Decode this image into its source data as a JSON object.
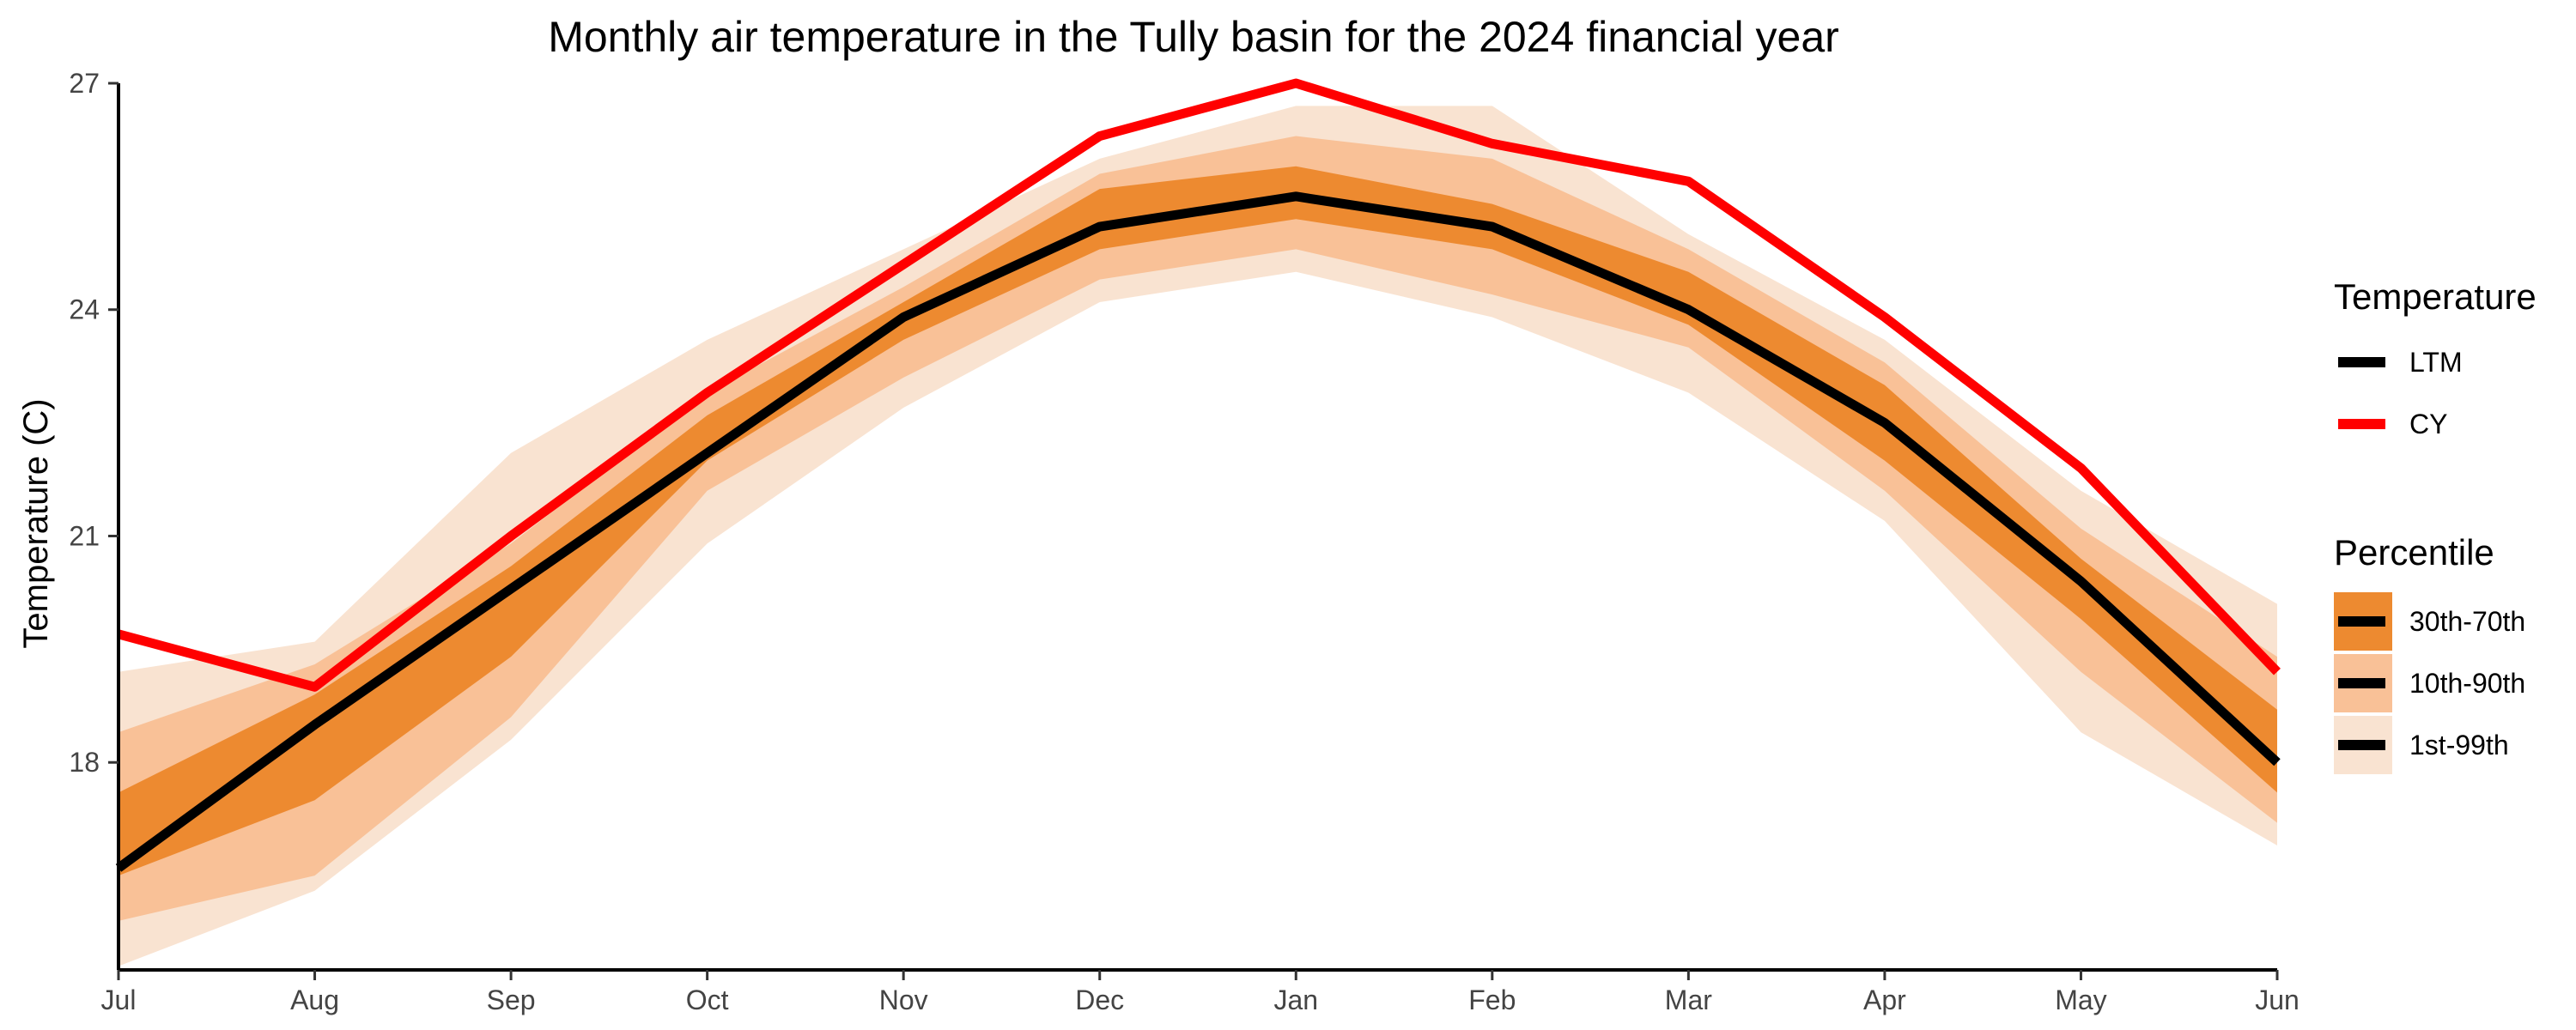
{
  "chart_data": {
    "type": "line",
    "title": "Monthly air temperature in the Tully basin for the 2024 financial year",
    "xlabel": "",
    "ylabel": "Temperature (C)",
    "categories": [
      "Jul",
      "Aug",
      "Sep",
      "Oct",
      "Nov",
      "Dec",
      "Jan",
      "Feb",
      "Mar",
      "Apr",
      "May",
      "Jun"
    ],
    "ylim": [
      15.25,
      27
    ],
    "yticks": [
      18,
      21,
      24,
      27
    ],
    "grid": false,
    "legend_position": "right",
    "series": [
      {
        "name": "LTM",
        "color": "#000000",
        "values": [
          16.6,
          18.5,
          20.3,
          22.1,
          23.9,
          25.1,
          25.5,
          25.1,
          24.0,
          22.5,
          20.4,
          18.0
        ]
      },
      {
        "name": "CY",
        "color": "#ff0000",
        "values": [
          19.7,
          19.0,
          21.0,
          22.9,
          24.6,
          26.3,
          27.0,
          26.2,
          25.7,
          23.9,
          21.9,
          19.2
        ]
      }
    ],
    "bands": [
      {
        "name": "1st-99th",
        "color": "#f9e3d1",
        "low": [
          15.3,
          16.3,
          18.3,
          20.9,
          22.7,
          24.1,
          24.5,
          23.9,
          22.9,
          21.2,
          18.4,
          16.9
        ],
        "high": [
          19.2,
          19.6,
          22.1,
          23.6,
          24.8,
          26.0,
          26.7,
          26.7,
          25.0,
          23.6,
          21.6,
          20.1
        ]
      },
      {
        "name": "10th-90th",
        "color": "#f9c197",
        "low": [
          15.9,
          16.5,
          18.6,
          21.6,
          23.1,
          24.4,
          24.8,
          24.2,
          23.5,
          21.6,
          19.2,
          17.2
        ]
      },
      {
        "name": "30th-70th",
        "color": "#ed8a30",
        "low": [
          16.5,
          17.5,
          19.4,
          22.0,
          23.6,
          24.8,
          25.2,
          24.8,
          23.8,
          22.0,
          19.9,
          17.6
        ],
        "high": [
          17.6,
          18.9,
          20.6,
          22.6,
          24.1,
          25.6,
          25.9,
          25.4,
          24.5,
          23.0,
          20.7,
          18.7
        ]
      }
    ],
    "band_10_90_high": [
      18.4,
      19.3,
      20.9,
      22.9,
      24.3,
      25.8,
      26.3,
      26.0,
      24.8,
      23.3,
      21.1,
      19.4
    ],
    "legend": {
      "temperature_title": "Temperature",
      "temperature_items": [
        "LTM",
        "CY"
      ],
      "percentile_title": "Percentile",
      "percentile_items": [
        "30th-70th",
        "10th-90th",
        "1st-99th"
      ]
    }
  }
}
